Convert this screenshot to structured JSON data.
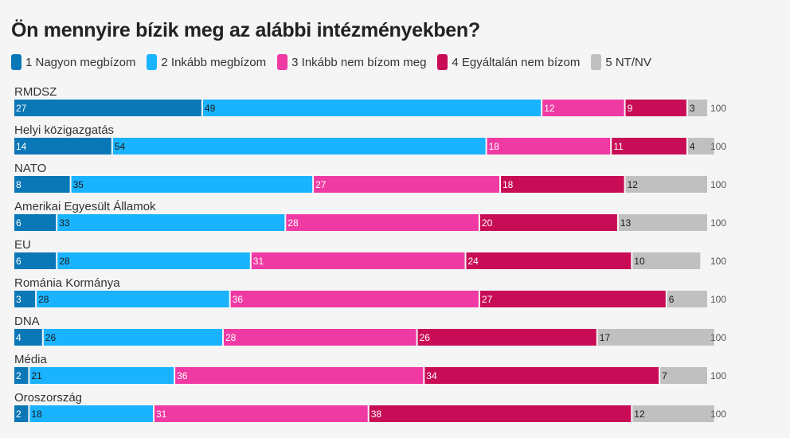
{
  "title": "Ön mennyire bízik meg az alábbi intézményekben?",
  "legend": [
    {
      "label": "1 Nagyon megbízom",
      "color": "#0a77b7"
    },
    {
      "label": "2 Inkább megbízom",
      "color": "#1ab3ff"
    },
    {
      "label": "3 Inkább nem bízom meg",
      "color": "#f03aa3"
    },
    {
      "label": "4 Egyáltalán nem bízom",
      "color": "#c80d56"
    },
    {
      "label": "5 NT/NV",
      "color": "#c0c0c0"
    }
  ],
  "chart_data": {
    "type": "bar",
    "orientation": "horizontal",
    "stacked": true,
    "title": "Ön mennyire bízik meg az alábbi intézményekben?",
    "categories": [
      "RMDSZ",
      "Helyi közigazgatás",
      "NATO",
      "Amerikai Egyesült Államok",
      "EU",
      "Románia Kormánya",
      "DNA",
      "Média",
      "Oroszország"
    ],
    "series": [
      {
        "name": "1 Nagyon megbízom",
        "color": "#0a77b7",
        "label_color": "#ffffff",
        "values": [
          27,
          14,
          8,
          6,
          6,
          3,
          4,
          2,
          2
        ]
      },
      {
        "name": "2 Inkább megbízom",
        "color": "#1ab3ff",
        "label_color": "#1a1a1a",
        "values": [
          49,
          54,
          35,
          33,
          28,
          28,
          26,
          21,
          18
        ]
      },
      {
        "name": "3 Inkább nem bízom meg",
        "color": "#f03aa3",
        "label_color": "#ffffff",
        "values": [
          12,
          18,
          27,
          28,
          31,
          36,
          28,
          36,
          31
        ]
      },
      {
        "name": "4 Egyáltalán nem bízom",
        "color": "#c80d56",
        "label_color": "#ffffff",
        "values": [
          9,
          11,
          18,
          20,
          24,
          27,
          26,
          34,
          38
        ]
      },
      {
        "name": "5 NT/NV",
        "color": "#c0c0c0",
        "label_color": "#1a1a1a",
        "values": [
          3,
          4,
          12,
          13,
          10,
          6,
          17,
          7,
          12
        ]
      }
    ],
    "totals": [
      100,
      100,
      100,
      100,
      100,
      100,
      100,
      100,
      100
    ],
    "xlim": [
      0,
      100
    ]
  }
}
